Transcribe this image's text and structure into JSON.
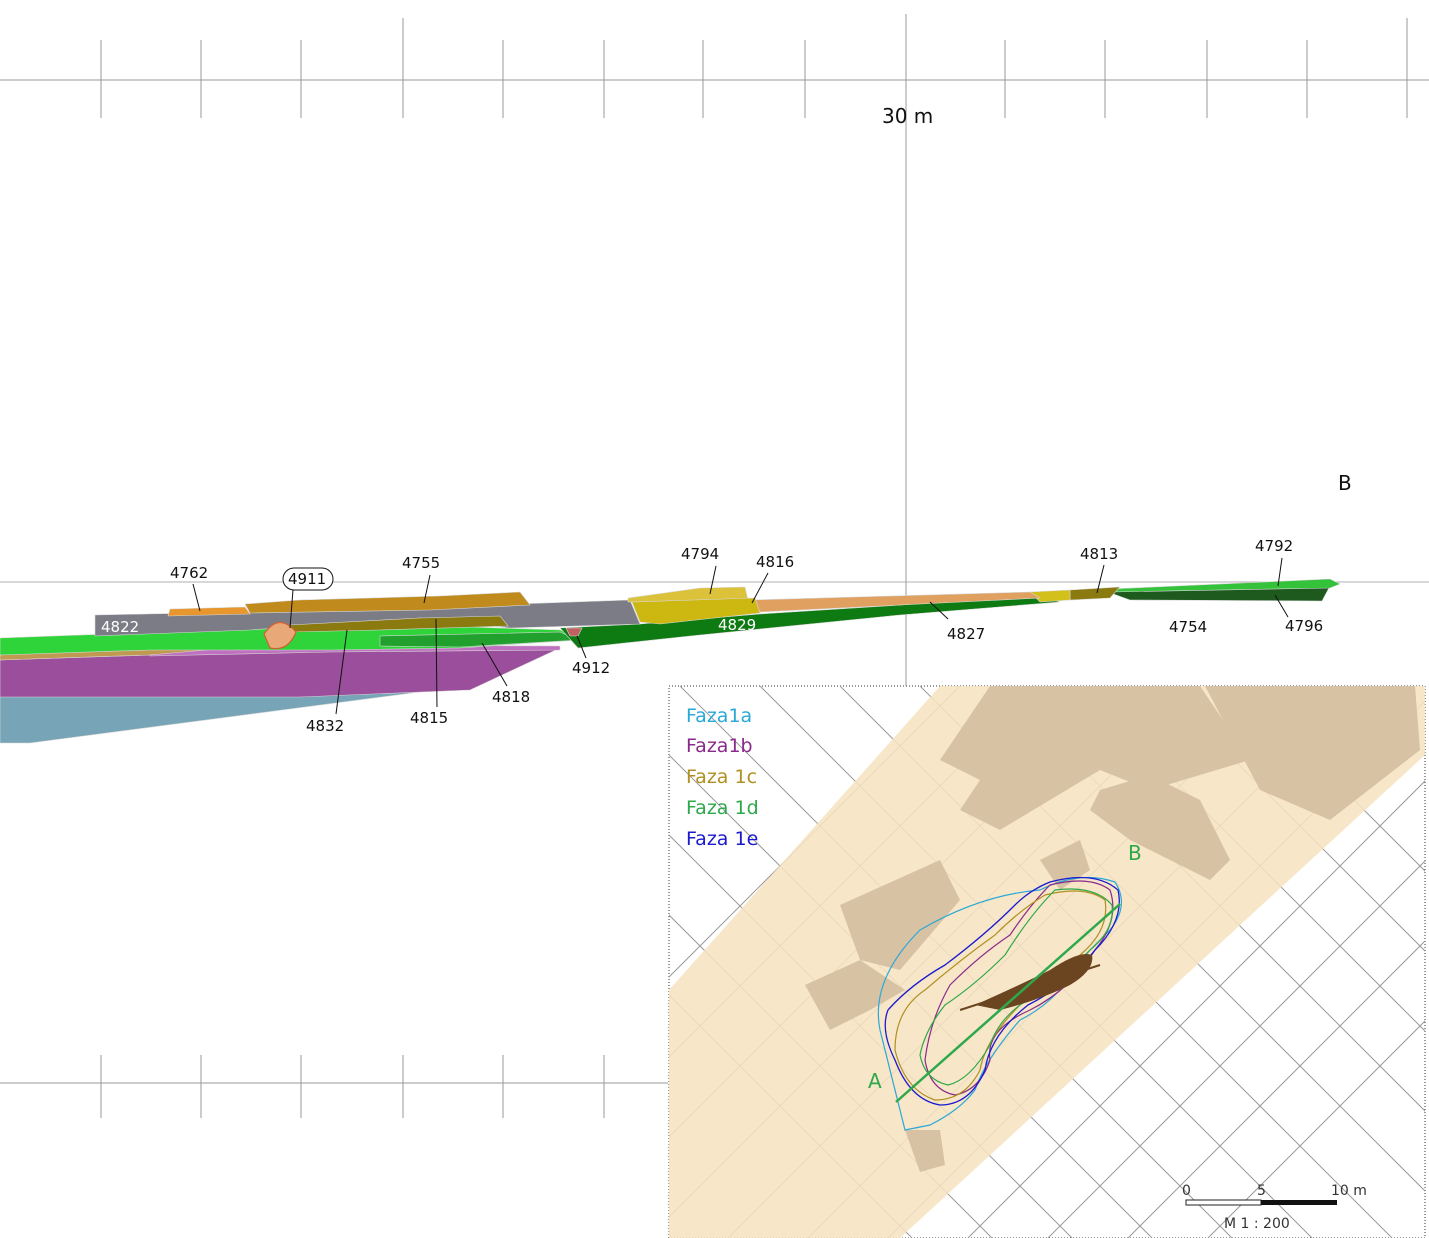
{
  "section": {
    "distance_label": "30 m",
    "endpoint_label": "B",
    "layers": [
      {
        "id": "4762",
        "color": "#e8962e"
      },
      {
        "id": "4755",
        "color": "#c08a1c"
      },
      {
        "id": "4794",
        "color": "#dcc23a"
      },
      {
        "id": "4816",
        "color": "#e0a060"
      },
      {
        "id": "4813",
        "color": "#8a7a10"
      },
      {
        "id": "4792",
        "color": "#34c23a"
      },
      {
        "id": "4822",
        "color": "#7c7c86"
      },
      {
        "id": "4829",
        "color": "#0e7a12"
      },
      {
        "id": "4827",
        "color": "#e0a060"
      },
      {
        "id": "4754",
        "color": "#1e5a1e"
      },
      {
        "id": "4796",
        "color": "#1e5a1e"
      },
      {
        "id": "4912",
        "color": "#c06060"
      },
      {
        "id": "4818",
        "color": "#2ec23a"
      },
      {
        "id": "4832",
        "color": "#9b4e9b"
      },
      {
        "id": "4815",
        "color": "#8a7a10"
      }
    ],
    "feature_label": "4911"
  },
  "inset": {
    "legend": [
      {
        "label": "Faza1a",
        "color": "#2aa8d8"
      },
      {
        "label": "Faza1b",
        "color": "#8a2a8a"
      },
      {
        "label": "Faza 1c",
        "color": "#b09020"
      },
      {
        "label": "Faza 1d",
        "color": "#2ea84a"
      },
      {
        "label": "Faza 1e",
        "color": "#1a1ad0"
      }
    ],
    "point_a": "A",
    "point_b": "B",
    "scale_ticks": [
      "0",
      "5",
      "10 m"
    ],
    "scale_ratio": "M 1 : 200"
  }
}
